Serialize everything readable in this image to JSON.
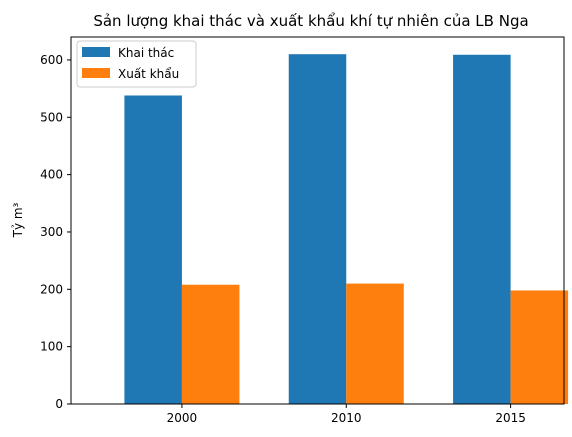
{
  "chart_data": {
    "type": "bar",
    "title": "Sản lượng khai thác và xuất khẩu khí tự nhiên của LB Nga",
    "xlabel": "",
    "ylabel": "Tỷ m³",
    "categories": [
      "2000",
      "2010",
      "2015"
    ],
    "series": [
      {
        "name": "Khai thác",
        "values": [
          538,
          610,
          609
        ],
        "color": "#1f77b4"
      },
      {
        "name": "Xuất khẩu",
        "values": [
          208,
          210,
          198
        ],
        "color": "#ff7f0e"
      }
    ],
    "ylim": [
      0,
      640
    ],
    "yticks": [
      0,
      100,
      200,
      300,
      400,
      500,
      600
    ],
    "grid": false,
    "legend_position": "top-left"
  }
}
